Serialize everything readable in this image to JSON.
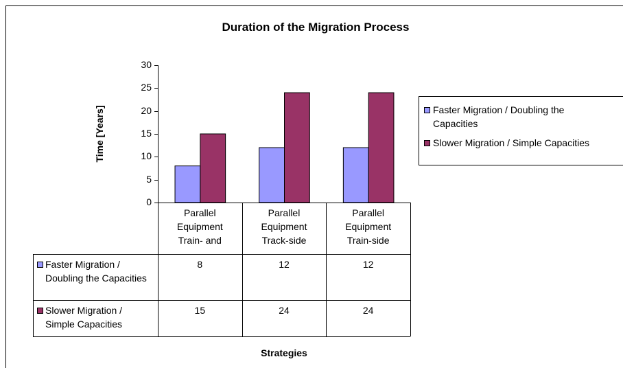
{
  "chart_data": {
    "type": "bar",
    "title": "Duration of the Migration Process",
    "y_label": "Time [Years]",
    "x_label": "Strategies",
    "categories": [
      "Parallel Equipment Train- and",
      "Parallel Equipment Track-side",
      "Parallel Equipment Train-side"
    ],
    "series": [
      {
        "name": "Faster Migration / Doubling the Capacities",
        "color": "#9999ff",
        "values": [
          8,
          12,
          12
        ]
      },
      {
        "name": "Slower Migration / Simple Capacities",
        "color": "#993366",
        "values": [
          15,
          24,
          24
        ]
      }
    ],
    "ylim": [
      0,
      30
    ],
    "yticks": [
      0,
      5,
      10,
      15,
      20,
      25,
      30
    ],
    "grid": false,
    "legend": "right",
    "data_table": true
  }
}
